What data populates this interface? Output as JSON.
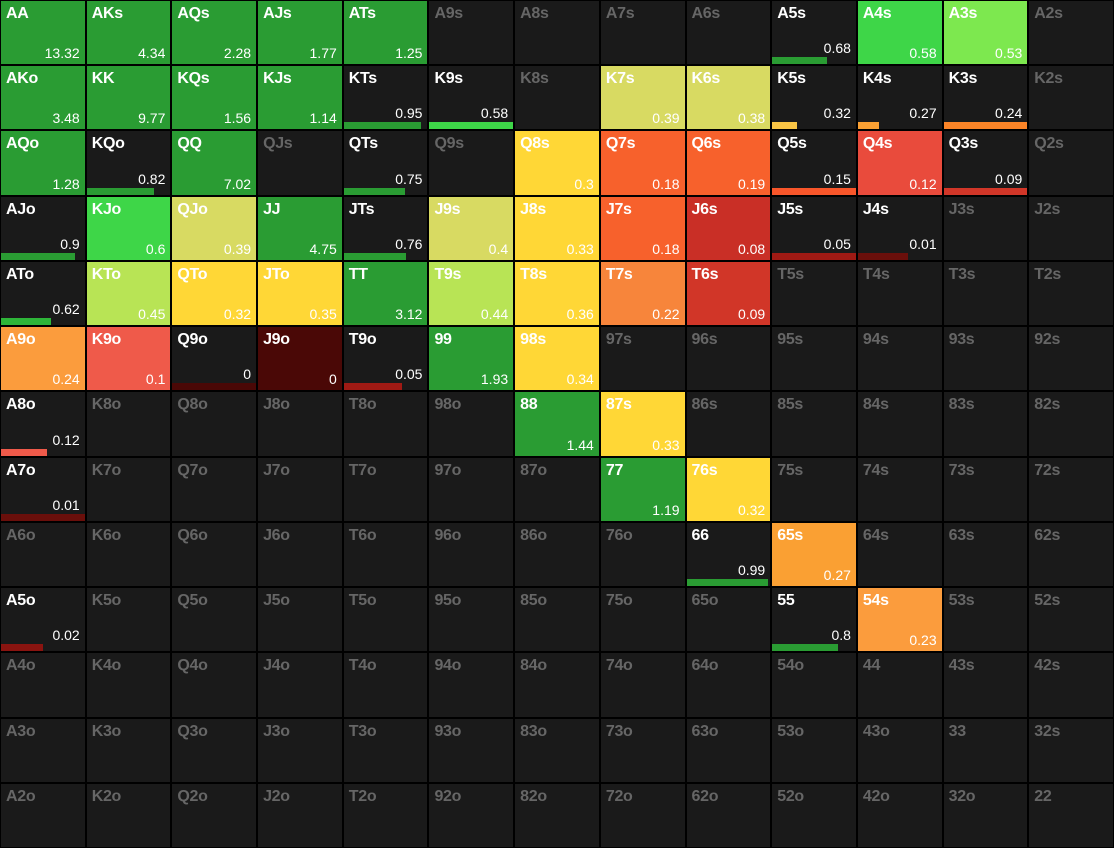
{
  "meta": {
    "type": "heatmap",
    "rows": 13,
    "cols": 13,
    "background_color": "#1a1a1a",
    "border_color": "#000000",
    "inactive_text_color": "#666666",
    "active_text_color": "#ffffff",
    "label_fontsize": 16,
    "value_fontsize": 14
  },
  "ranks": [
    "A",
    "K",
    "Q",
    "J",
    "T",
    "9",
    "8",
    "7",
    "6",
    "5",
    "4",
    "3",
    "2"
  ],
  "cells": [
    {
      "r": 0,
      "c": 0,
      "hand": "AA",
      "val": "13.32",
      "mode": "full",
      "color": "#2a9c33"
    },
    {
      "r": 0,
      "c": 1,
      "hand": "AKs",
      "val": "4.34",
      "mode": "full",
      "color": "#2a9c33"
    },
    {
      "r": 0,
      "c": 2,
      "hand": "AQs",
      "val": "2.28",
      "mode": "full",
      "color": "#2a9c33"
    },
    {
      "r": 0,
      "c": 3,
      "hand": "AJs",
      "val": "1.77",
      "mode": "full",
      "color": "#2a9c33"
    },
    {
      "r": 0,
      "c": 4,
      "hand": "ATs",
      "val": "1.25",
      "mode": "full",
      "color": "#2a9c33"
    },
    {
      "r": 0,
      "c": 5,
      "hand": "A9s",
      "mode": "inactive"
    },
    {
      "r": 0,
      "c": 6,
      "hand": "A8s",
      "mode": "inactive"
    },
    {
      "r": 0,
      "c": 7,
      "hand": "A7s",
      "mode": "inactive"
    },
    {
      "r": 0,
      "c": 8,
      "hand": "A6s",
      "mode": "inactive"
    },
    {
      "r": 0,
      "c": 9,
      "hand": "A5s",
      "val": "0.68",
      "mode": "bar",
      "color": "#2a9c33",
      "width": 0.65
    },
    {
      "r": 0,
      "c": 10,
      "hand": "A4s",
      "val": "0.58",
      "mode": "full",
      "color": "#3ed648"
    },
    {
      "r": 0,
      "c": 11,
      "hand": "A3s",
      "val": "0.53",
      "mode": "full",
      "color": "#7de84f"
    },
    {
      "r": 0,
      "c": 12,
      "hand": "A2s",
      "mode": "inactive"
    },
    {
      "r": 1,
      "c": 0,
      "hand": "AKo",
      "val": "3.48",
      "mode": "full",
      "color": "#2a9c33"
    },
    {
      "r": 1,
      "c": 1,
      "hand": "KK",
      "val": "9.77",
      "mode": "full",
      "color": "#2a9c33"
    },
    {
      "r": 1,
      "c": 2,
      "hand": "KQs",
      "val": "1.56",
      "mode": "full",
      "color": "#2a9c33"
    },
    {
      "r": 1,
      "c": 3,
      "hand": "KJs",
      "val": "1.14",
      "mode": "full",
      "color": "#2a9c33"
    },
    {
      "r": 1,
      "c": 4,
      "hand": "KTs",
      "val": "0.95",
      "mode": "bar",
      "color": "#2a9c33",
      "width": 0.92
    },
    {
      "r": 1,
      "c": 5,
      "hand": "K9s",
      "val": "0.58",
      "mode": "bar",
      "color": "#3ed648",
      "width": 1.0
    },
    {
      "r": 1,
      "c": 6,
      "hand": "K8s",
      "mode": "inactive"
    },
    {
      "r": 1,
      "c": 7,
      "hand": "K7s",
      "val": "0.39",
      "mode": "full",
      "color": "#d8da62"
    },
    {
      "r": 1,
      "c": 8,
      "hand": "K6s",
      "val": "0.38",
      "mode": "full",
      "color": "#d8da62"
    },
    {
      "r": 1,
      "c": 9,
      "hand": "K5s",
      "val": "0.32",
      "mode": "bar",
      "color": "#fac545",
      "width": 0.3
    },
    {
      "r": 1,
      "c": 10,
      "hand": "K4s",
      "val": "0.27",
      "mode": "bar",
      "color": "#faa033",
      "width": 0.25
    },
    {
      "r": 1,
      "c": 11,
      "hand": "K3s",
      "val": "0.24",
      "mode": "bar",
      "color": "#fb8427",
      "width": 1.0
    },
    {
      "r": 1,
      "c": 12,
      "hand": "K2s",
      "mode": "inactive"
    },
    {
      "r": 2,
      "c": 0,
      "hand": "AQo",
      "val": "1.28",
      "mode": "full",
      "color": "#2a9c33"
    },
    {
      "r": 2,
      "c": 1,
      "hand": "KQo",
      "val": "0.82",
      "mode": "bar",
      "color": "#2a9c33",
      "width": 0.8
    },
    {
      "r": 2,
      "c": 2,
      "hand": "QQ",
      "val": "7.02",
      "mode": "full",
      "color": "#2a9c33"
    },
    {
      "r": 2,
      "c": 3,
      "hand": "QJs",
      "mode": "inactive"
    },
    {
      "r": 2,
      "c": 4,
      "hand": "QTs",
      "val": "0.75",
      "mode": "bar",
      "color": "#2a9c33",
      "width": 0.73
    },
    {
      "r": 2,
      "c": 5,
      "hand": "Q9s",
      "mode": "inactive"
    },
    {
      "r": 2,
      "c": 6,
      "hand": "Q8s",
      "val": "0.3",
      "mode": "full",
      "color": "#ffd736"
    },
    {
      "r": 2,
      "c": 7,
      "hand": "Q7s",
      "val": "0.18",
      "mode": "full",
      "color": "#f7612c"
    },
    {
      "r": 2,
      "c": 8,
      "hand": "Q6s",
      "val": "0.19",
      "mode": "full",
      "color": "#f7612c"
    },
    {
      "r": 2,
      "c": 9,
      "hand": "Q5s",
      "val": "0.15",
      "mode": "bar",
      "color": "#f8562a",
      "width": 1.0
    },
    {
      "r": 2,
      "c": 10,
      "hand": "Q4s",
      "val": "0.12",
      "mode": "full",
      "color": "#e94b3c"
    },
    {
      "r": 2,
      "c": 11,
      "hand": "Q3s",
      "val": "0.09",
      "mode": "bar",
      "color": "#d13628",
      "width": 1.0
    },
    {
      "r": 2,
      "c": 12,
      "hand": "Q2s",
      "mode": "inactive"
    },
    {
      "r": 3,
      "c": 0,
      "hand": "AJo",
      "val": "0.9",
      "mode": "bar",
      "color": "#2a9c33",
      "width": 0.88
    },
    {
      "r": 3,
      "c": 1,
      "hand": "KJo",
      "val": "0.6",
      "mode": "full",
      "color": "#3ed648"
    },
    {
      "r": 3,
      "c": 2,
      "hand": "QJo",
      "val": "0.39",
      "mode": "full",
      "color": "#d8da62"
    },
    {
      "r": 3,
      "c": 3,
      "hand": "JJ",
      "val": "4.75",
      "mode": "full",
      "color": "#2a9c33"
    },
    {
      "r": 3,
      "c": 4,
      "hand": "JTs",
      "val": "0.76",
      "mode": "bar",
      "color": "#2a9c33",
      "width": 0.74
    },
    {
      "r": 3,
      "c": 5,
      "hand": "J9s",
      "val": "0.4",
      "mode": "full",
      "color": "#d8da62"
    },
    {
      "r": 3,
      "c": 6,
      "hand": "J8s",
      "val": "0.33",
      "mode": "full",
      "color": "#ffd736"
    },
    {
      "r": 3,
      "c": 7,
      "hand": "J7s",
      "val": "0.18",
      "mode": "full",
      "color": "#f7612c"
    },
    {
      "r": 3,
      "c": 8,
      "hand": "J6s",
      "val": "0.08",
      "mode": "full",
      "color": "#c92f26"
    },
    {
      "r": 3,
      "c": 9,
      "hand": "J5s",
      "val": "0.05",
      "mode": "bar",
      "color": "#a01a14",
      "width": 1.0
    },
    {
      "r": 3,
      "c": 10,
      "hand": "J4s",
      "val": "0.01",
      "mode": "bar",
      "color": "#6a0f0b",
      "width": 0.6
    },
    {
      "r": 3,
      "c": 11,
      "hand": "J3s",
      "mode": "inactive"
    },
    {
      "r": 3,
      "c": 12,
      "hand": "J2s",
      "mode": "inactive"
    },
    {
      "r": 4,
      "c": 0,
      "hand": "ATo",
      "val": "0.62",
      "mode": "bar",
      "color": "#2eb639",
      "width": 0.6
    },
    {
      "r": 4,
      "c": 1,
      "hand": "KTo",
      "val": "0.45",
      "mode": "full",
      "color": "#b8e455"
    },
    {
      "r": 4,
      "c": 2,
      "hand": "QTo",
      "val": "0.32",
      "mode": "full",
      "color": "#ffd736"
    },
    {
      "r": 4,
      "c": 3,
      "hand": "JTo",
      "val": "0.35",
      "mode": "full",
      "color": "#ffd736"
    },
    {
      "r": 4,
      "c": 4,
      "hand": "TT",
      "val": "3.12",
      "mode": "full",
      "color": "#2a9c33"
    },
    {
      "r": 4,
      "c": 5,
      "hand": "T9s",
      "val": "0.44",
      "mode": "full",
      "color": "#b8e455"
    },
    {
      "r": 4,
      "c": 6,
      "hand": "T8s",
      "val": "0.36",
      "mode": "full",
      "color": "#ffd736"
    },
    {
      "r": 4,
      "c": 7,
      "hand": "T7s",
      "val": "0.22",
      "mode": "full",
      "color": "#f7853b"
    },
    {
      "r": 4,
      "c": 8,
      "hand": "T6s",
      "val": "0.09",
      "mode": "full",
      "color": "#d13628"
    },
    {
      "r": 4,
      "c": 9,
      "hand": "T5s",
      "mode": "inactive"
    },
    {
      "r": 4,
      "c": 10,
      "hand": "T4s",
      "mode": "inactive"
    },
    {
      "r": 4,
      "c": 11,
      "hand": "T3s",
      "mode": "inactive"
    },
    {
      "r": 4,
      "c": 12,
      "hand": "T2s",
      "mode": "inactive"
    },
    {
      "r": 5,
      "c": 0,
      "hand": "A9o",
      "val": "0.24",
      "mode": "full",
      "color": "#fb9c3d"
    },
    {
      "r": 5,
      "c": 1,
      "hand": "K9o",
      "val": "0.1",
      "mode": "full",
      "color": "#ef5a4a"
    },
    {
      "r": 5,
      "c": 2,
      "hand": "Q9o",
      "val": "0",
      "mode": "bar",
      "color": "#4a0806",
      "width": 1.0
    },
    {
      "r": 5,
      "c": 3,
      "hand": "J9o",
      "val": "0",
      "mode": "full",
      "color": "#4a0806"
    },
    {
      "r": 5,
      "c": 4,
      "hand": "T9o",
      "val": "0.05",
      "mode": "bar",
      "color": "#a01a14",
      "width": 0.7
    },
    {
      "r": 5,
      "c": 5,
      "hand": "99",
      "val": "1.93",
      "mode": "full",
      "color": "#2a9c33"
    },
    {
      "r": 5,
      "c": 6,
      "hand": "98s",
      "val": "0.34",
      "mode": "full",
      "color": "#ffd736"
    },
    {
      "r": 5,
      "c": 7,
      "hand": "97s",
      "mode": "inactive"
    },
    {
      "r": 5,
      "c": 8,
      "hand": "96s",
      "mode": "inactive"
    },
    {
      "r": 5,
      "c": 9,
      "hand": "95s",
      "mode": "inactive"
    },
    {
      "r": 5,
      "c": 10,
      "hand": "94s",
      "mode": "inactive"
    },
    {
      "r": 5,
      "c": 11,
      "hand": "93s",
      "mode": "inactive"
    },
    {
      "r": 5,
      "c": 12,
      "hand": "92s",
      "mode": "inactive"
    },
    {
      "r": 6,
      "c": 0,
      "hand": "A8o",
      "val": "0.12",
      "mode": "bar",
      "color": "#ef5a4a",
      "width": 0.55
    },
    {
      "r": 6,
      "c": 1,
      "hand": "K8o",
      "mode": "inactive"
    },
    {
      "r": 6,
      "c": 2,
      "hand": "Q8o",
      "mode": "inactive"
    },
    {
      "r": 6,
      "c": 3,
      "hand": "J8o",
      "mode": "inactive"
    },
    {
      "r": 6,
      "c": 4,
      "hand": "T8o",
      "mode": "inactive"
    },
    {
      "r": 6,
      "c": 5,
      "hand": "98o",
      "mode": "inactive"
    },
    {
      "r": 6,
      "c": 6,
      "hand": "88",
      "val": "1.44",
      "mode": "full",
      "color": "#2a9c33"
    },
    {
      "r": 6,
      "c": 7,
      "hand": "87s",
      "val": "0.33",
      "mode": "full",
      "color": "#ffd736"
    },
    {
      "r": 6,
      "c": 8,
      "hand": "86s",
      "mode": "inactive"
    },
    {
      "r": 6,
      "c": 9,
      "hand": "85s",
      "mode": "inactive"
    },
    {
      "r": 6,
      "c": 10,
      "hand": "84s",
      "mode": "inactive"
    },
    {
      "r": 6,
      "c": 11,
      "hand": "83s",
      "mode": "inactive"
    },
    {
      "r": 6,
      "c": 12,
      "hand": "82s",
      "mode": "inactive"
    },
    {
      "r": 7,
      "c": 0,
      "hand": "A7o",
      "val": "0.01",
      "mode": "bar",
      "color": "#6a0f0b",
      "width": 1.0
    },
    {
      "r": 7,
      "c": 1,
      "hand": "K7o",
      "mode": "inactive"
    },
    {
      "r": 7,
      "c": 2,
      "hand": "Q7o",
      "mode": "inactive"
    },
    {
      "r": 7,
      "c": 3,
      "hand": "J7o",
      "mode": "inactive"
    },
    {
      "r": 7,
      "c": 4,
      "hand": "T7o",
      "mode": "inactive"
    },
    {
      "r": 7,
      "c": 5,
      "hand": "97o",
      "mode": "inactive"
    },
    {
      "r": 7,
      "c": 6,
      "hand": "87o",
      "mode": "inactive"
    },
    {
      "r": 7,
      "c": 7,
      "hand": "77",
      "val": "1.19",
      "mode": "full",
      "color": "#2a9c33"
    },
    {
      "r": 7,
      "c": 8,
      "hand": "76s",
      "val": "0.32",
      "mode": "full",
      "color": "#ffd736"
    },
    {
      "r": 7,
      "c": 9,
      "hand": "75s",
      "mode": "inactive"
    },
    {
      "r": 7,
      "c": 10,
      "hand": "74s",
      "mode": "inactive"
    },
    {
      "r": 7,
      "c": 11,
      "hand": "73s",
      "mode": "inactive"
    },
    {
      "r": 7,
      "c": 12,
      "hand": "72s",
      "mode": "inactive"
    },
    {
      "r": 8,
      "c": 0,
      "hand": "A6o",
      "mode": "inactive"
    },
    {
      "r": 8,
      "c": 1,
      "hand": "K6o",
      "mode": "inactive"
    },
    {
      "r": 8,
      "c": 2,
      "hand": "Q6o",
      "mode": "inactive"
    },
    {
      "r": 8,
      "c": 3,
      "hand": "J6o",
      "mode": "inactive"
    },
    {
      "r": 8,
      "c": 4,
      "hand": "T6o",
      "mode": "inactive"
    },
    {
      "r": 8,
      "c": 5,
      "hand": "96o",
      "mode": "inactive"
    },
    {
      "r": 8,
      "c": 6,
      "hand": "86o",
      "mode": "inactive"
    },
    {
      "r": 8,
      "c": 7,
      "hand": "76o",
      "mode": "inactive"
    },
    {
      "r": 8,
      "c": 8,
      "hand": "66",
      "val": "0.99",
      "mode": "bar",
      "color": "#2a9c33",
      "width": 0.97
    },
    {
      "r": 8,
      "c": 9,
      "hand": "65s",
      "val": "0.27",
      "mode": "full",
      "color": "#faa033"
    },
    {
      "r": 8,
      "c": 10,
      "hand": "64s",
      "mode": "inactive"
    },
    {
      "r": 8,
      "c": 11,
      "hand": "63s",
      "mode": "inactive"
    },
    {
      "r": 8,
      "c": 12,
      "hand": "62s",
      "mode": "inactive"
    },
    {
      "r": 9,
      "c": 0,
      "hand": "A5o",
      "val": "0.02",
      "mode": "bar",
      "color": "#8a1410",
      "width": 0.5
    },
    {
      "r": 9,
      "c": 1,
      "hand": "K5o",
      "mode": "inactive"
    },
    {
      "r": 9,
      "c": 2,
      "hand": "Q5o",
      "mode": "inactive"
    },
    {
      "r": 9,
      "c": 3,
      "hand": "J5o",
      "mode": "inactive"
    },
    {
      "r": 9,
      "c": 4,
      "hand": "T5o",
      "mode": "inactive"
    },
    {
      "r": 9,
      "c": 5,
      "hand": "95o",
      "mode": "inactive"
    },
    {
      "r": 9,
      "c": 6,
      "hand": "85o",
      "mode": "inactive"
    },
    {
      "r": 9,
      "c": 7,
      "hand": "75o",
      "mode": "inactive"
    },
    {
      "r": 9,
      "c": 8,
      "hand": "65o",
      "mode": "inactive"
    },
    {
      "r": 9,
      "c": 9,
      "hand": "55",
      "val": "0.8",
      "mode": "bar",
      "color": "#2a9c33",
      "width": 0.78
    },
    {
      "r": 9,
      "c": 10,
      "hand": "54s",
      "val": "0.23",
      "mode": "full",
      "color": "#fb9c3d"
    },
    {
      "r": 9,
      "c": 11,
      "hand": "53s",
      "mode": "inactive"
    },
    {
      "r": 9,
      "c": 12,
      "hand": "52s",
      "mode": "inactive"
    },
    {
      "r": 10,
      "c": 0,
      "hand": "A4o",
      "mode": "inactive"
    },
    {
      "r": 10,
      "c": 1,
      "hand": "K4o",
      "mode": "inactive"
    },
    {
      "r": 10,
      "c": 2,
      "hand": "Q4o",
      "mode": "inactive"
    },
    {
      "r": 10,
      "c": 3,
      "hand": "J4o",
      "mode": "inactive"
    },
    {
      "r": 10,
      "c": 4,
      "hand": "T4o",
      "mode": "inactive"
    },
    {
      "r": 10,
      "c": 5,
      "hand": "94o",
      "mode": "inactive"
    },
    {
      "r": 10,
      "c": 6,
      "hand": "84o",
      "mode": "inactive"
    },
    {
      "r": 10,
      "c": 7,
      "hand": "74o",
      "mode": "inactive"
    },
    {
      "r": 10,
      "c": 8,
      "hand": "64o",
      "mode": "inactive"
    },
    {
      "r": 10,
      "c": 9,
      "hand": "54o",
      "mode": "inactive"
    },
    {
      "r": 10,
      "c": 10,
      "hand": "44",
      "mode": "inactive"
    },
    {
      "r": 10,
      "c": 11,
      "hand": "43s",
      "mode": "inactive"
    },
    {
      "r": 10,
      "c": 12,
      "hand": "42s",
      "mode": "inactive"
    },
    {
      "r": 11,
      "c": 0,
      "hand": "A3o",
      "mode": "inactive"
    },
    {
      "r": 11,
      "c": 1,
      "hand": "K3o",
      "mode": "inactive"
    },
    {
      "r": 11,
      "c": 2,
      "hand": "Q3o",
      "mode": "inactive"
    },
    {
      "r": 11,
      "c": 3,
      "hand": "J3o",
      "mode": "inactive"
    },
    {
      "r": 11,
      "c": 4,
      "hand": "T3o",
      "mode": "inactive"
    },
    {
      "r": 11,
      "c": 5,
      "hand": "93o",
      "mode": "inactive"
    },
    {
      "r": 11,
      "c": 6,
      "hand": "83o",
      "mode": "inactive"
    },
    {
      "r": 11,
      "c": 7,
      "hand": "73o",
      "mode": "inactive"
    },
    {
      "r": 11,
      "c": 8,
      "hand": "63o",
      "mode": "inactive"
    },
    {
      "r": 11,
      "c": 9,
      "hand": "53o",
      "mode": "inactive"
    },
    {
      "r": 11,
      "c": 10,
      "hand": "43o",
      "mode": "inactive"
    },
    {
      "r": 11,
      "c": 11,
      "hand": "33",
      "mode": "inactive"
    },
    {
      "r": 11,
      "c": 12,
      "hand": "32s",
      "mode": "inactive"
    },
    {
      "r": 12,
      "c": 0,
      "hand": "A2o",
      "mode": "inactive"
    },
    {
      "r": 12,
      "c": 1,
      "hand": "K2o",
      "mode": "inactive"
    },
    {
      "r": 12,
      "c": 2,
      "hand": "Q2o",
      "mode": "inactive"
    },
    {
      "r": 12,
      "c": 3,
      "hand": "J2o",
      "mode": "inactive"
    },
    {
      "r": 12,
      "c": 4,
      "hand": "T2o",
      "mode": "inactive"
    },
    {
      "r": 12,
      "c": 5,
      "hand": "92o",
      "mode": "inactive"
    },
    {
      "r": 12,
      "c": 6,
      "hand": "82o",
      "mode": "inactive"
    },
    {
      "r": 12,
      "c": 7,
      "hand": "72o",
      "mode": "inactive"
    },
    {
      "r": 12,
      "c": 8,
      "hand": "62o",
      "mode": "inactive"
    },
    {
      "r": 12,
      "c": 9,
      "hand": "52o",
      "mode": "inactive"
    },
    {
      "r": 12,
      "c": 10,
      "hand": "42o",
      "mode": "inactive"
    },
    {
      "r": 12,
      "c": 11,
      "hand": "32o",
      "mode": "inactive"
    },
    {
      "r": 12,
      "c": 12,
      "hand": "22",
      "mode": "inactive"
    }
  ]
}
